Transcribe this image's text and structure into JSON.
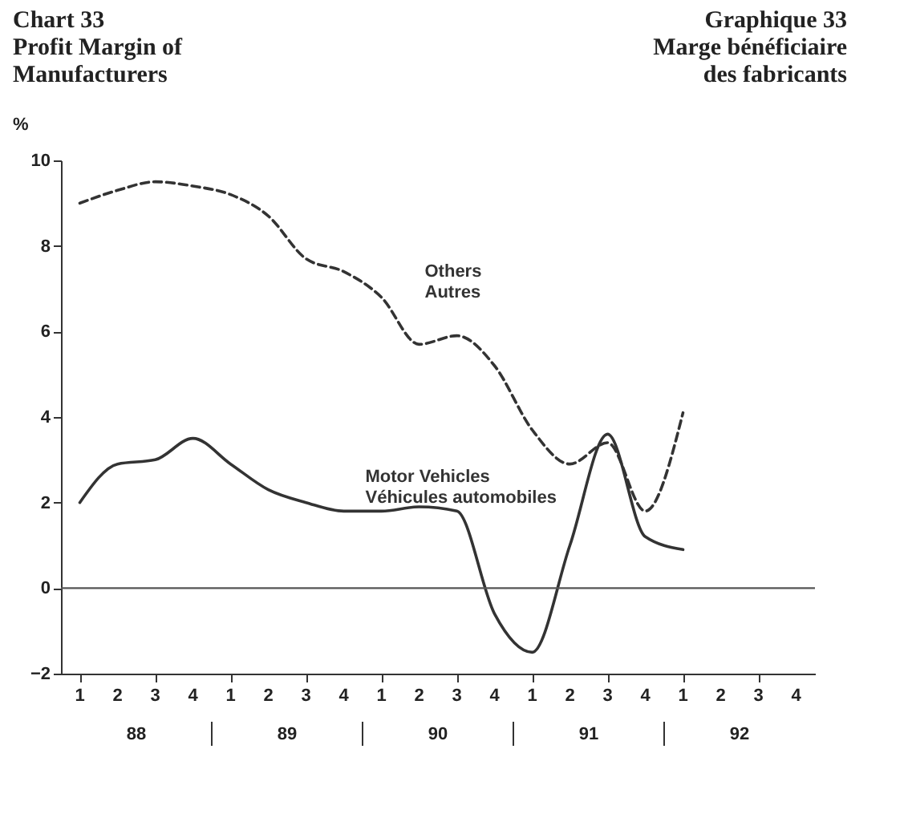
{
  "chart_data": {
    "type": "line",
    "title": "Chart 33\nProfit Margin of\nManufacturers",
    "subtitle": "Graphique 33\nMarge bénéficiaire\ndes fabricants",
    "ylabel": "%",
    "categories": [
      "1",
      "2",
      "3",
      "4",
      "1",
      "2",
      "3",
      "4",
      "1",
      "2",
      "3",
      "4",
      "1",
      "2",
      "3",
      "4",
      "1",
      "2",
      "3",
      "4"
    ],
    "series": [
      {
        "name": "Others\nAutres",
        "color": "#333333",
        "line_style": "dashed",
        "values": [
          9.0,
          9.3,
          9.5,
          9.4,
          9.2,
          8.7,
          7.7,
          7.4,
          6.8,
          5.7,
          5.9,
          5.2,
          3.7,
          2.9,
          3.4,
          1.8,
          4.1,
          null,
          null,
          null
        ]
      },
      {
        "name": "Motor Vehicles\nVéhicules automobiles",
        "color": "#333333",
        "line_style": "solid",
        "values": [
          2.0,
          2.9,
          3.0,
          3.5,
          2.9,
          2.3,
          2.0,
          1.8,
          1.8,
          1.9,
          1.8,
          -0.6,
          -1.5,
          1.0,
          3.6,
          1.2,
          0.9,
          null,
          null,
          null
        ]
      }
    ],
    "annotations": [
      "88",
      "89",
      "90",
      "91",
      "92"
    ],
    "ylim": [
      -2,
      10
    ],
    "yticks": [
      -2,
      0,
      2,
      4,
      6,
      8,
      10
    ],
    "ref_lines": [
      {
        "axis": "y",
        "value": 0,
        "color": "#555555"
      }
    ],
    "marker": "none"
  }
}
